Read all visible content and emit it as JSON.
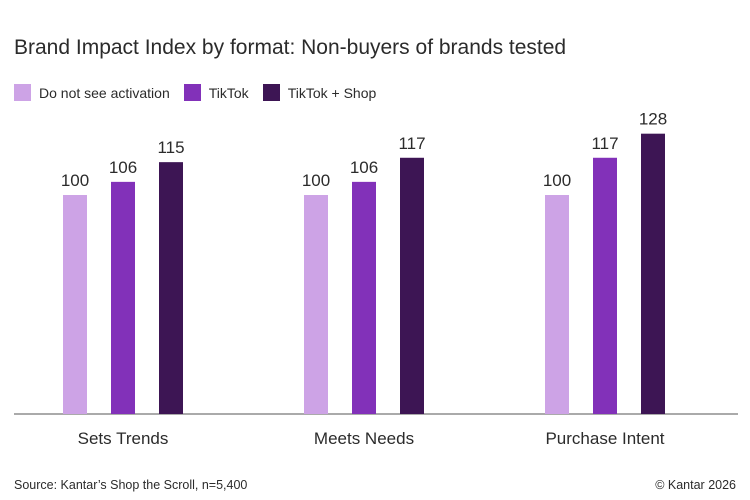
{
  "chart_data": {
    "type": "bar",
    "title": "Brand Impact Index by format: Non-buyers of brands tested",
    "categories": [
      "Sets Trends",
      "Meets Needs",
      "Purchase Intent"
    ],
    "series": [
      {
        "name": "Do not see activation",
        "color": "#cda3e6",
        "values": [
          100,
          100,
          100
        ]
      },
      {
        "name": "TikTok",
        "color": "#8231b9",
        "values": [
          106,
          106,
          117
        ]
      },
      {
        "name": "TikTok + Shop",
        "color": "#3d1554",
        "values": [
          115,
          117,
          128
        ]
      }
    ],
    "xlabel": "",
    "ylabel": "",
    "ylim": [
      0,
      128
    ],
    "grid": false,
    "legend_position": "top-left",
    "data_labels": true
  },
  "footer": {
    "source": "Source: Kantar’s Shop the Scroll, n=5,400",
    "copyright": "© Kantar 2026"
  }
}
